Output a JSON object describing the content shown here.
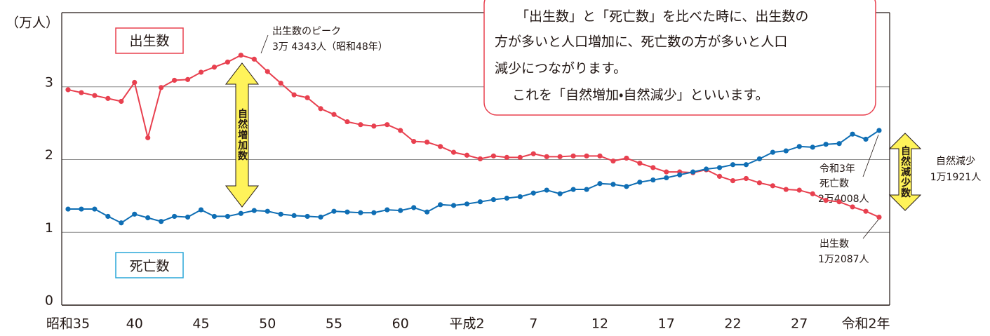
{
  "chart_data": {
    "type": "line",
    "y_unit": "（万人）",
    "categories": [
      "昭和35",
      null,
      null,
      null,
      null,
      "40",
      null,
      null,
      null,
      null,
      "45",
      null,
      null,
      null,
      null,
      "50",
      null,
      null,
      null,
      null,
      "55",
      null,
      null,
      null,
      null,
      "60",
      null,
      null,
      null,
      null,
      "平成2",
      null,
      null,
      null,
      null,
      "7",
      null,
      null,
      null,
      null,
      "12",
      null,
      null,
      null,
      null,
      "17",
      null,
      null,
      null,
      null,
      "22",
      null,
      null,
      null,
      null,
      "27",
      null,
      null,
      null,
      null,
      "令和2年",
      null
    ],
    "series": [
      {
        "name": "出生数",
        "color": "#e8404f",
        "values": [
          2.96,
          2.92,
          2.88,
          2.84,
          2.8,
          3.06,
          2.3,
          2.99,
          3.09,
          3.1,
          3.2,
          3.27,
          3.34,
          3.4343,
          3.38,
          3.21,
          3.05,
          2.89,
          2.85,
          2.7,
          2.62,
          2.52,
          2.48,
          2.46,
          2.48,
          2.4,
          2.25,
          2.24,
          2.18,
          2.1,
          2.06,
          2.01,
          2.05,
          2.03,
          2.03,
          2.08,
          2.04,
          2.04,
          2.05,
          2.05,
          2.05,
          1.98,
          2.02,
          1.95,
          1.89,
          1.83,
          1.83,
          1.82,
          1.86,
          1.77,
          1.71,
          1.74,
          1.68,
          1.64,
          1.59,
          1.58,
          1.53,
          1.44,
          1.42,
          1.35,
          1.29,
          1.2087
        ]
      },
      {
        "name": "死亡数",
        "color": "#0f6eb4",
        "values": [
          1.32,
          1.32,
          1.32,
          1.22,
          1.13,
          1.25,
          1.2,
          1.15,
          1.22,
          1.21,
          1.31,
          1.22,
          1.22,
          1.26,
          1.3,
          1.29,
          1.25,
          1.23,
          1.22,
          1.21,
          1.29,
          1.28,
          1.27,
          1.27,
          1.31,
          1.3,
          1.34,
          1.28,
          1.38,
          1.37,
          1.39,
          1.42,
          1.45,
          1.47,
          1.49,
          1.54,
          1.58,
          1.53,
          1.59,
          1.59,
          1.67,
          1.66,
          1.63,
          1.69,
          1.72,
          1.75,
          1.79,
          1.83,
          1.87,
          1.89,
          1.93,
          1.93,
          2.01,
          2.1,
          2.12,
          2.18,
          2.17,
          2.21,
          2.22,
          2.35,
          2.28,
          2.4008
        ]
      }
    ],
    "ylim": [
      0,
      4
    ],
    "yticks": [
      0,
      1,
      2,
      3
    ],
    "grid": true,
    "annotations": {
      "peak": [
        "出生数のピーク",
        "3万 4343人（昭和48年）"
      ],
      "increase": "自然増加数",
      "decrease": "自然減少数",
      "decrease_note": [
        "自然減少",
        "1万1921人"
      ],
      "deaths_2021": [
        "令和3年",
        "死亡数",
        "2万4008人"
      ],
      "births_2021": [
        "出生数",
        "1万2087人"
      ]
    }
  },
  "note": {
    "lines": [
      "「出生数」と「死亡数」を比べた時に、出生数の",
      "方が多いと人口増加に、死亡数の方が多いと人口",
      "減少につながります。",
      "これを「自然増加・自然減少」といいます。"
    ]
  }
}
